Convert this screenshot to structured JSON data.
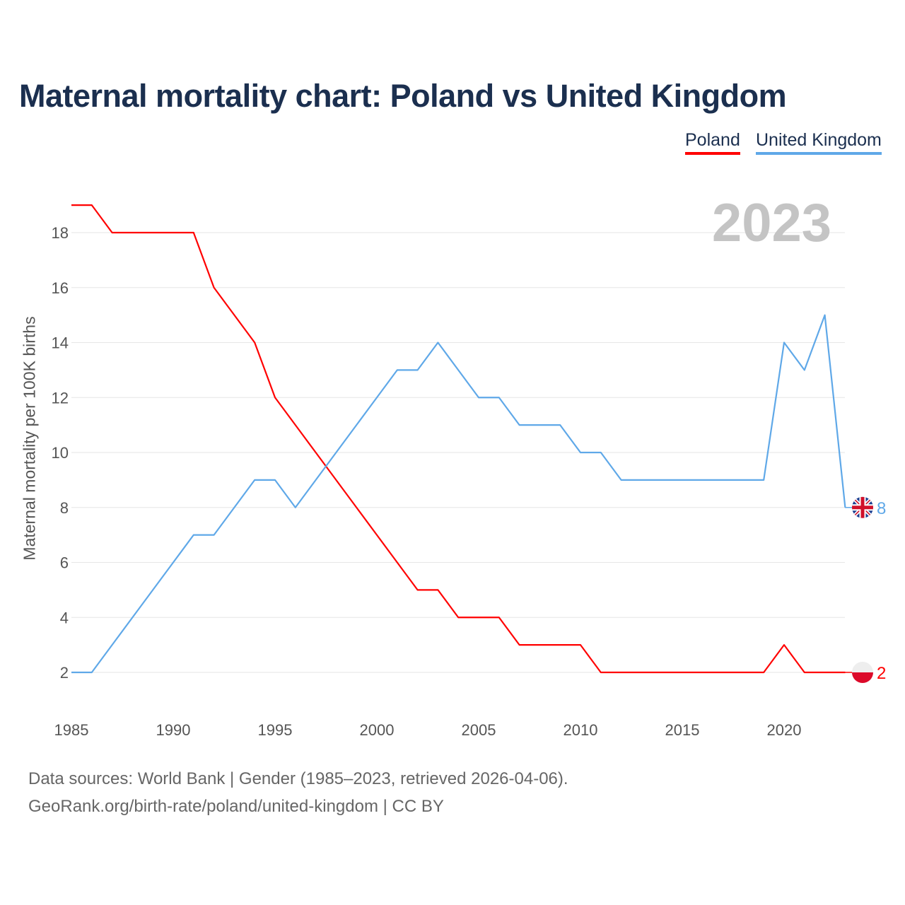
{
  "title": "Maternal mortality chart: Poland vs United Kingdom",
  "year_watermark": "2023",
  "footer": {
    "line1": "Data sources: World Bank | Gender (1985–2023, retrieved 2026-04-06).",
    "line2": "GeoRank.org/birth-rate/poland/united-kingdom | CC BY"
  },
  "chart_data": {
    "type": "line",
    "title": "Maternal mortality chart: Poland vs United Kingdom",
    "xlabel": "",
    "ylabel": "Maternal mortality per 100K births",
    "xlim": [
      1985,
      2023
    ],
    "ylim": [
      1,
      19.5
    ],
    "x_ticks": [
      1985,
      1990,
      1995,
      2000,
      2005,
      2010,
      2015,
      2020
    ],
    "y_ticks": [
      2,
      4,
      6,
      8,
      10,
      12,
      14,
      16,
      18
    ],
    "grid": true,
    "legend_position": "top-right",
    "x": [
      1985,
      1986,
      1987,
      1988,
      1989,
      1990,
      1991,
      1992,
      1993,
      1994,
      1995,
      1996,
      1997,
      1998,
      1999,
      2000,
      2001,
      2002,
      2003,
      2004,
      2005,
      2006,
      2007,
      2008,
      2009,
      2010,
      2011,
      2012,
      2013,
      2014,
      2015,
      2016,
      2017,
      2018,
      2019,
      2020,
      2021,
      2022,
      2023
    ],
    "series": [
      {
        "name": "Poland",
        "color": "#ff0000",
        "end_label": "2",
        "values": [
          19,
          19,
          18,
          18,
          18,
          18,
          18,
          16,
          15,
          14,
          12,
          11,
          10,
          9,
          8,
          7,
          6,
          5,
          5,
          4,
          4,
          4,
          3,
          3,
          3,
          3,
          2,
          2,
          2,
          2,
          2,
          2,
          2,
          2,
          2,
          3,
          2,
          2,
          2
        ]
      },
      {
        "name": "United Kingdom",
        "color": "#5fa8e8",
        "end_label": "8",
        "values": [
          2,
          2,
          3,
          4,
          5,
          6,
          7,
          7,
          8,
          9,
          9,
          8,
          9,
          10,
          11,
          12,
          13,
          13,
          14,
          13,
          12,
          12,
          11,
          11,
          11,
          10,
          10,
          9,
          9,
          9,
          9,
          9,
          9,
          9,
          9,
          14,
          13,
          15,
          8
        ]
      }
    ]
  }
}
